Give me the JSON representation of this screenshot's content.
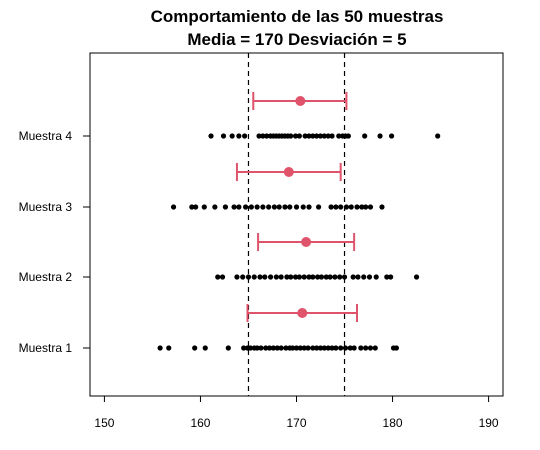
{
  "chart_data": {
    "type": "scatter",
    "title_line1": "Comportamiento de las 50 muestras",
    "title_line2": "Media = 170 Desviación = 5",
    "xlim": [
      148.5,
      191.5
    ],
    "x_ticks": [
      150,
      160,
      170,
      180,
      190
    ],
    "reference_lines": [
      165,
      175
    ],
    "groups": [
      {
        "label": "Muestra 1",
        "y": 1,
        "points": [
          155.8,
          156.7,
          159.4,
          160.5,
          162.9,
          164.5,
          164.9,
          165.2,
          165.6,
          165.9,
          166.3,
          166.8,
          167.2,
          167.6,
          168.0,
          168.4,
          168.9,
          169.3,
          169.6,
          170.0,
          170.4,
          170.8,
          171.2,
          171.7,
          172.1,
          172.5,
          172.9,
          173.3,
          173.7,
          174.1,
          174.6,
          175.1,
          175.6,
          176.0,
          176.7,
          177.2,
          177.7,
          178.2,
          180.1,
          180.4
        ],
        "ci": [
          164.9,
          176.3
        ],
        "mean": 170.6
      },
      {
        "label": "Muestra 2",
        "y": 2,
        "points": [
          161.8,
          162.3,
          163.8,
          164.4,
          165.0,
          165.6,
          166.2,
          166.7,
          167.3,
          167.9,
          168.4,
          169.0,
          169.4,
          169.9,
          170.3,
          170.8,
          171.3,
          171.7,
          172.2,
          172.6,
          173.1,
          173.5,
          174.0,
          174.5,
          175.0,
          175.9,
          176.4,
          177.0,
          177.6,
          178.3,
          179.4,
          179.8,
          182.5
        ],
        "ci": [
          166.0,
          176.0
        ],
        "mean": 171.0
      },
      {
        "label": "Muestra 3",
        "y": 3,
        "points": [
          157.2,
          159.1,
          159.5,
          160.4,
          161.5,
          162.6,
          163.5,
          164.0,
          164.7,
          165.3,
          165.9,
          166.5,
          167.1,
          167.7,
          168.2,
          168.8,
          169.3,
          170.0,
          170.7,
          171.3,
          172.3,
          173.6,
          174.1,
          174.6,
          175.2,
          175.7,
          176.3,
          176.8,
          177.2,
          177.7,
          178.9
        ],
        "ci": [
          163.8,
          174.6
        ],
        "mean": 169.2
      },
      {
        "label": "Muestra 4",
        "y": 4,
        "points": [
          161.1,
          162.4,
          163.3,
          164.0,
          164.6,
          166.1,
          166.5,
          166.9,
          167.3,
          167.6,
          167.9,
          168.2,
          168.5,
          168.8,
          169.1,
          169.4,
          169.9,
          170.3,
          170.9,
          171.3,
          171.7,
          172.1,
          172.5,
          172.9,
          173.3,
          173.7,
          174.4,
          174.8,
          175.1,
          175.4,
          177.1,
          178.7,
          179.9,
          184.7
        ],
        "ci": [
          165.5,
          175.2
        ],
        "mean": 170.4
      }
    ],
    "colors": {
      "points": "#000000",
      "interval": "#DF536B",
      "axes": "#000000",
      "background": "#FFFFFF"
    },
    "grid": false,
    "legend": "none"
  }
}
